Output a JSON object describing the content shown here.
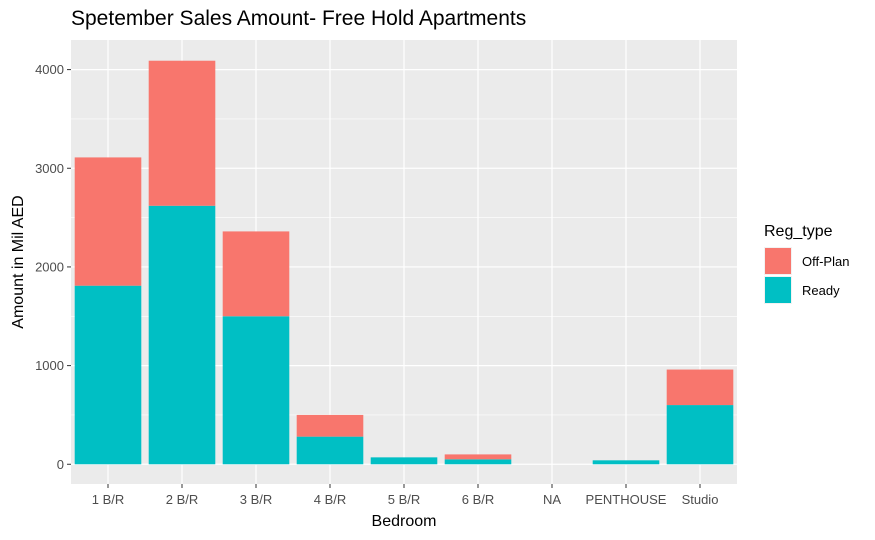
{
  "chart_data": {
    "type": "bar",
    "stacked": true,
    "title": "Spetember Sales Amount- Free Hold Apartments",
    "xlabel": "Bedroom",
    "ylabel": "Amount in Mil AED",
    "categories": [
      "1 B/R",
      "2 B/R",
      "3 B/R",
      "4 B/R",
      "5 B/R",
      "6 B/R",
      "NA",
      "PENTHOUSE",
      "Studio"
    ],
    "yticks": [
      0,
      1000,
      2000,
      3000,
      4000
    ],
    "ylim": [
      -200,
      4300
    ],
    "grid": true,
    "legend": {
      "title": "Reg_type",
      "position": "right"
    },
    "series": [
      {
        "name": "Ready",
        "color": "#00BFC4",
        "values": [
          1810,
          2620,
          1500,
          280,
          70,
          50,
          0,
          40,
          600
        ]
      },
      {
        "name": "Off-Plan",
        "color": "#F8766D",
        "values": [
          1300,
          1470,
          860,
          220,
          0,
          50,
          0,
          0,
          360
        ]
      }
    ]
  }
}
